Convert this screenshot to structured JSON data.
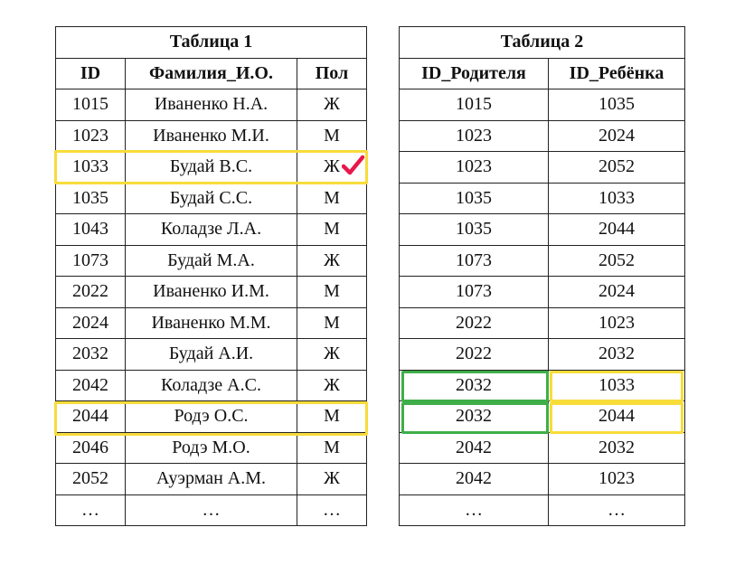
{
  "table1": {
    "title": "Таблица 1",
    "headers": [
      "ID",
      "Фамилия_И.О.",
      "Пол"
    ],
    "rows": [
      [
        "1015",
        "Иваненко Н.А.",
        "Ж"
      ],
      [
        "1023",
        "Иваненко М.И.",
        "М"
      ],
      [
        "1033",
        "Будай В.С.",
        "Ж"
      ],
      [
        "1035",
        "Будай С.С.",
        "М"
      ],
      [
        "1043",
        "Коладзе Л.А.",
        "М"
      ],
      [
        "1073",
        "Будай М.А.",
        "Ж"
      ],
      [
        "2022",
        "Иваненко И.М.",
        "М"
      ],
      [
        "2024",
        "Иваненко М.М.",
        "М"
      ],
      [
        "2032",
        "Будай А.И.",
        "Ж"
      ],
      [
        "2042",
        "Коладзе А.С.",
        "Ж"
      ],
      [
        "2044",
        "Родэ О.С.",
        "М"
      ],
      [
        "2046",
        "Родэ М.О.",
        "М"
      ],
      [
        "2052",
        "Ауэрман А.М.",
        "Ж"
      ],
      [
        "…",
        "…",
        "…"
      ]
    ]
  },
  "table2": {
    "title": "Таблица 2",
    "headers": [
      "ID_Родителя",
      "ID_Ребёнка"
    ],
    "rows": [
      [
        "1015",
        "1035"
      ],
      [
        "1023",
        "2024"
      ],
      [
        "1023",
        "2052"
      ],
      [
        "1035",
        "1033"
      ],
      [
        "1035",
        "2044"
      ],
      [
        "1073",
        "2052"
      ],
      [
        "1073",
        "2024"
      ],
      [
        "2022",
        "1023"
      ],
      [
        "2022",
        "2032"
      ],
      [
        "2032",
        "1033"
      ],
      [
        "2032",
        "2044"
      ],
      [
        "2042",
        "2032"
      ],
      [
        "2042",
        "1023"
      ],
      [
        "…",
        "…"
      ]
    ]
  },
  "highlights": {
    "yellow": "#f7dc3a",
    "green": "#3fae48",
    "check": "#e8174a"
  },
  "icons": {
    "check": "check-mark-icon"
  }
}
